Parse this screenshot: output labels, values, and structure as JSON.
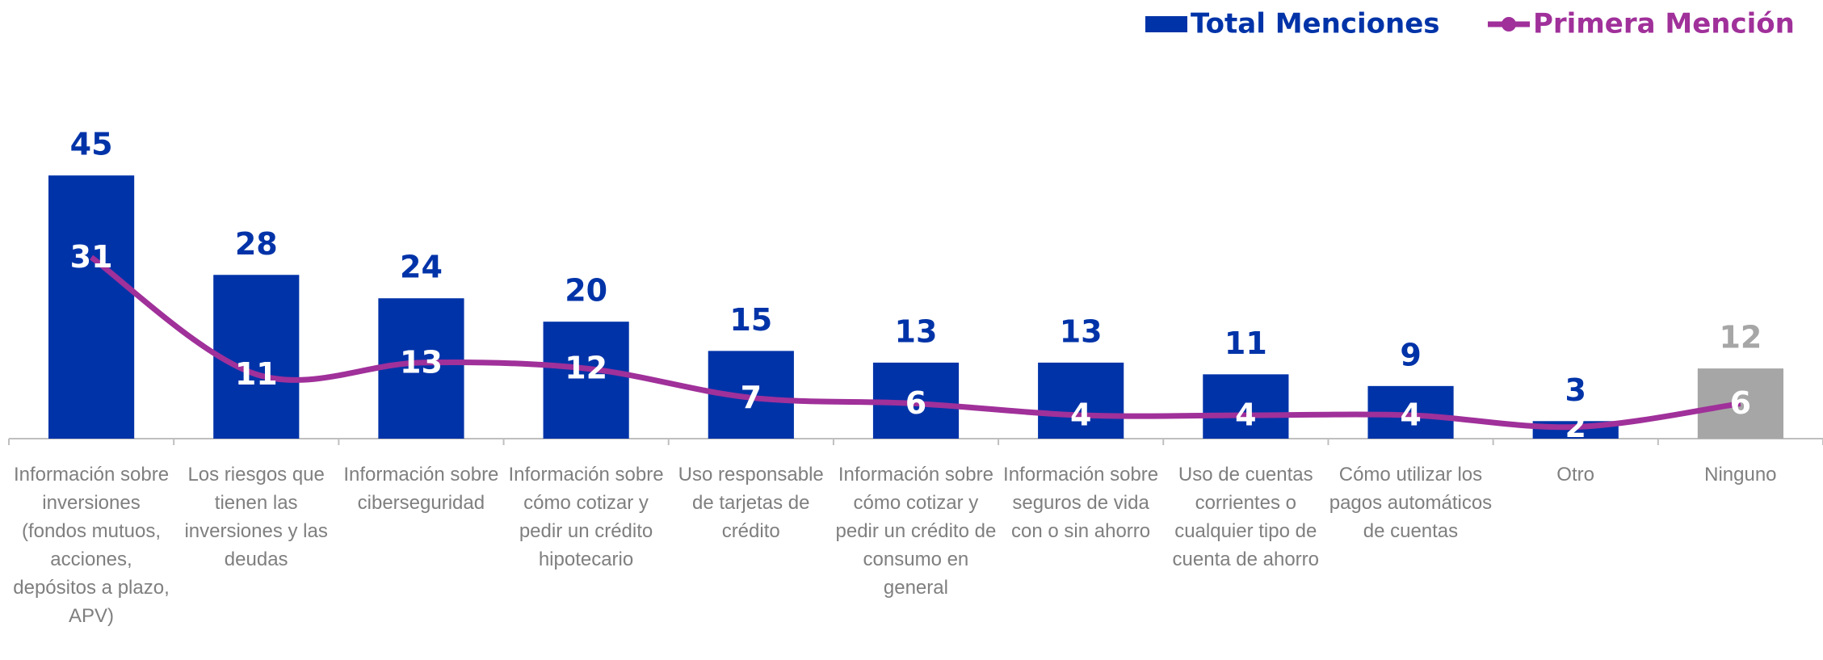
{
  "chart_data": {
    "type": "bar_line",
    "categories": [
      "Información sobre inversiones (fondos mutuos, acciones, depósitos a plazo, APV)",
      "Los riesgos que tienen las inversiones y las deudas",
      "Información sobre ciberseguridad",
      "Información sobre cómo cotizar y pedir un crédito hipotecario",
      "Uso responsable de tarjetas de crédito",
      "Información sobre cómo cotizar y pedir un crédito de consumo en general",
      "Información sobre seguros de vida con o sin ahorro",
      "Uso de cuentas corrientes o cualquier tipo de cuenta de ahorro",
      "Cómo utilizar los pagos automáticos de cuentas",
      "Otro",
      "Ninguno"
    ],
    "series": [
      {
        "name": "Total Menciones",
        "type": "bar",
        "color": "#0033a8",
        "colors": [
          "#0033a8",
          "#0033a8",
          "#0033a8",
          "#0033a8",
          "#0033a8",
          "#0033a8",
          "#0033a8",
          "#0033a8",
          "#0033a8",
          "#0033a8",
          "#a6a6a6"
        ],
        "values": [
          45,
          28,
          24,
          20,
          15,
          13,
          13,
          11,
          9,
          3,
          12
        ]
      },
      {
        "name": "Primera Mención",
        "type": "line",
        "color": "#a0309a",
        "values": [
          31,
          11,
          13,
          12,
          7,
          6,
          4,
          4,
          4,
          2,
          6
        ]
      }
    ],
    "ylim": [
      0,
      75
    ],
    "legend": "top-right"
  }
}
